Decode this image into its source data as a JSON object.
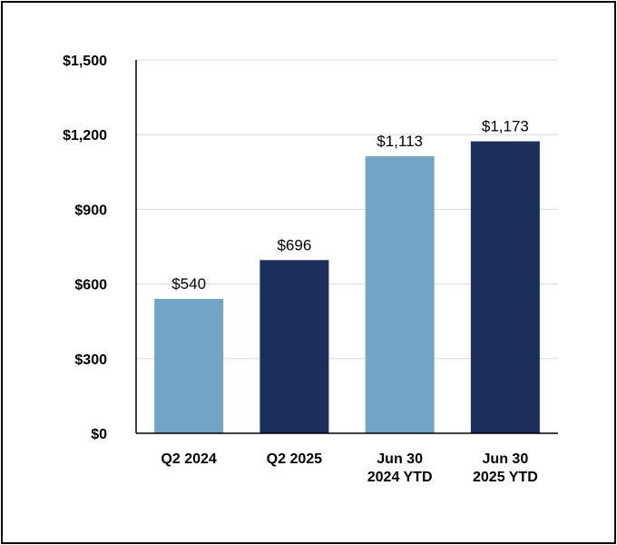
{
  "chart_data": {
    "type": "bar",
    "categories": [
      [
        "Q2 2024"
      ],
      [
        "Q2 2025"
      ],
      [
        "Jun 30",
        "2024 YTD"
      ],
      [
        "Jun 30",
        "2025 YTD"
      ]
    ],
    "values": [
      540,
      696,
      1113,
      1173
    ],
    "data_labels": [
      "$540",
      "$696",
      "$1,113",
      "$1,173"
    ],
    "bar_colors": [
      "#71a4c5",
      "#1c2e5c",
      "#71a4c5",
      "#1c2e5c"
    ],
    "ylim": [
      0,
      1500
    ],
    "yticks": [
      0,
      300,
      600,
      900,
      1200,
      1500
    ],
    "ytick_labels": [
      "$0",
      "$300",
      "$600",
      "$900",
      "$1,200",
      "$1,500"
    ],
    "grid": true,
    "gridline_color": "#d9d9d9",
    "title": "",
    "xlabel": "",
    "ylabel": ""
  }
}
